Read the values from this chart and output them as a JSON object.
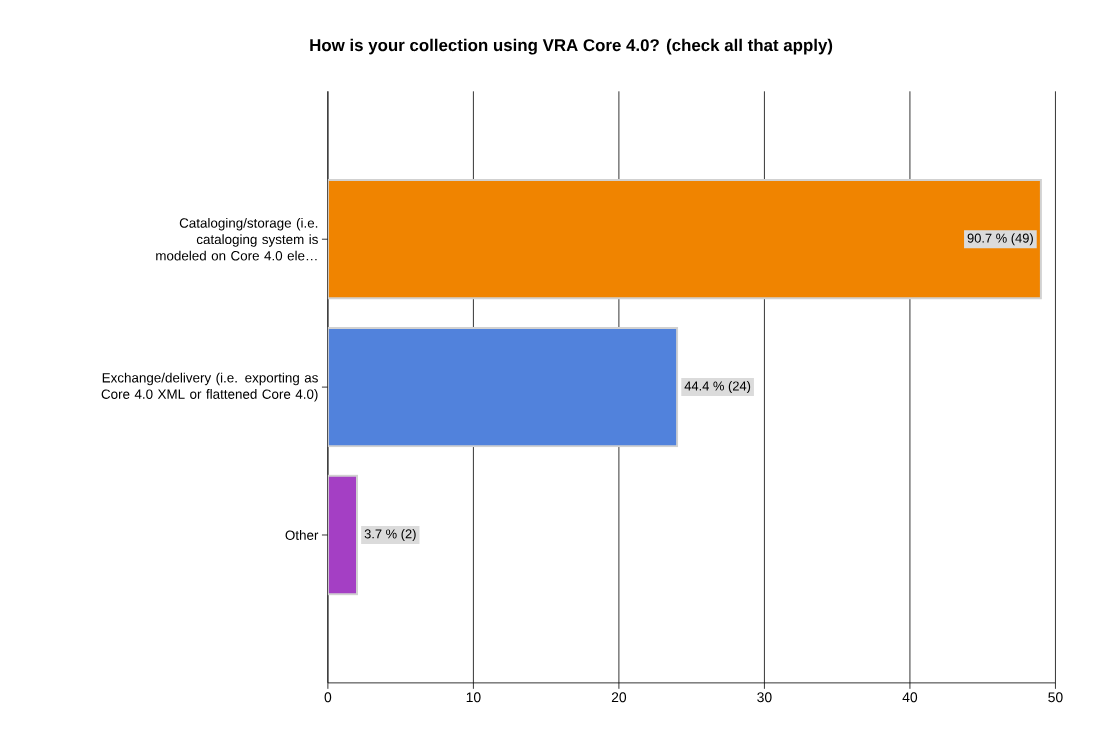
{
  "chart_data": {
    "type": "bar",
    "orientation": "horizontal",
    "title": "How is your collection using VRA Core 4.0? (check all that apply)",
    "categories": [
      "Cataloging/storage (i.e. cataloging system is modeled on Core 4.0 ele…",
      "Exchange/delivery (i.e. exporting as Core 4.0 XML or flattened Core 4.0)",
      "Other"
    ],
    "values": [
      49,
      24,
      2
    ],
    "colors": [
      "#f08400",
      "#5182dc",
      "#a43fc4"
    ],
    "value_labels": [
      "90.7 % (49)",
      "44.4 % (24)",
      "3.7 % (2)"
    ],
    "xlim": [
      0,
      50
    ],
    "xticks": [
      0,
      10,
      20,
      30,
      40,
      50
    ],
    "grid": "x"
  }
}
